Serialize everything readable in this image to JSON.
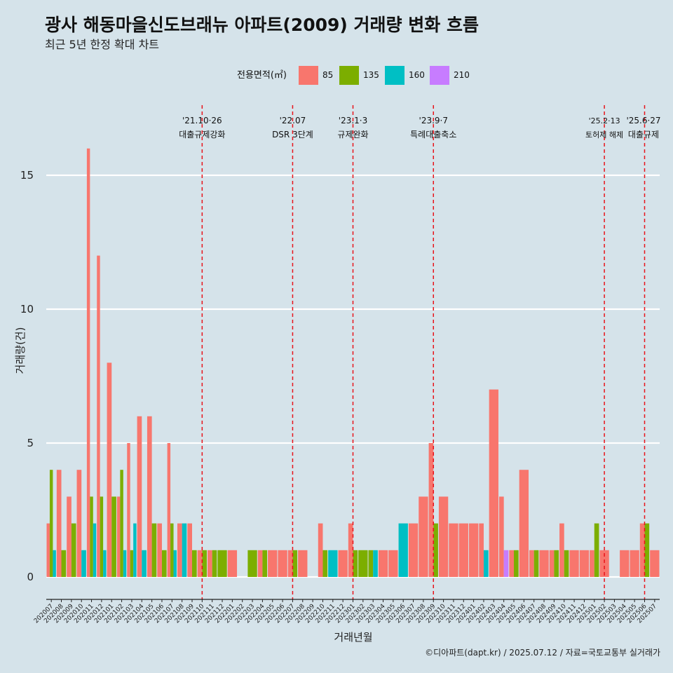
{
  "chart_data": {
    "type": "bar",
    "title": "광사 해동마을신도브래뉴 아파트(2009) 거래량 변화 흐름",
    "subtitle": "최근 5년 한정 확대 차트",
    "xlabel": "거래년월",
    "ylabel": "거래량(건)",
    "caption": "©디아파트(dapt.kr) / 2025.07.12 / 자료=국토교통부 실거래가",
    "legend_title": "전용면적(㎡)",
    "legend_position": "top",
    "ylim": [
      -0.7,
      17.5
    ],
    "yticks": [
      0,
      5,
      10,
      15
    ],
    "grid": "horizontal",
    "categories": [
      "202007",
      "202008",
      "202009",
      "202010",
      "202011",
      "202012",
      "202101",
      "202102",
      "202103",
      "202104",
      "202105",
      "202106",
      "202107",
      "202108",
      "202109",
      "202110",
      "202111",
      "202112",
      "202201",
      "202202",
      "202203",
      "202204",
      "202205",
      "202206",
      "202207",
      "202208",
      "202209",
      "202210",
      "202211",
      "202212",
      "202301",
      "202302",
      "202303",
      "202304",
      "202305",
      "202306",
      "202307",
      "202308",
      "202309",
      "202310",
      "202311",
      "202312",
      "202401",
      "202402",
      "202403",
      "202404",
      "202405",
      "202406",
      "202407",
      "202408",
      "202409",
      "202410",
      "202411",
      "202412",
      "202501",
      "202502",
      "202503",
      "202504",
      "202505",
      "202506",
      "202507"
    ],
    "series": [
      {
        "name": "85",
        "color": "#f8766d",
        "values": [
          2,
          4,
          3,
          4,
          16,
          12,
          8,
          3,
          5,
          6,
          6,
          2,
          5,
          2,
          2,
          1,
          1,
          0,
          1,
          0,
          0,
          1,
          1,
          1,
          1,
          1,
          0,
          2,
          0,
          1,
          2,
          0,
          0,
          1,
          1,
          0,
          2,
          3,
          5,
          3,
          2,
          2,
          2,
          2,
          7,
          3,
          1,
          4,
          1,
          1,
          1,
          2,
          1,
          1,
          1,
          1,
          0,
          1,
          1,
          2,
          1
        ]
      },
      {
        "name": "135",
        "color": "#7cae00",
        "values": [
          4,
          1,
          2,
          0,
          3,
          3,
          3,
          4,
          1,
          0,
          2,
          1,
          2,
          0,
          1,
          1,
          1,
          1,
          0,
          0,
          1,
          1,
          0,
          0,
          1,
          0,
          0,
          1,
          0,
          0,
          1,
          1,
          1,
          0,
          0,
          0,
          0,
          0,
          2,
          0,
          0,
          0,
          0,
          0,
          0,
          0,
          1,
          0,
          1,
          0,
          1,
          1,
          0,
          0,
          2,
          0,
          0,
          0,
          0,
          2,
          0
        ]
      },
      {
        "name": "160",
        "color": "#00bfc4",
        "values": [
          1,
          0,
          0,
          1,
          2,
          1,
          0,
          1,
          2,
          1,
          0,
          0,
          1,
          2,
          0,
          0,
          0,
          0,
          0,
          0,
          0,
          0,
          0,
          0,
          0,
          0,
          0,
          0,
          1,
          0,
          0,
          0,
          1,
          0,
          0,
          2,
          0,
          0,
          0,
          0,
          0,
          0,
          0,
          1,
          0,
          0,
          0,
          0,
          0,
          0,
          0,
          0,
          0,
          0,
          0,
          0,
          0,
          0,
          0,
          0,
          0
        ]
      },
      {
        "name": "210",
        "color": "#c77cff",
        "values": [
          0,
          0,
          0,
          0,
          0,
          0,
          0,
          0,
          0,
          0,
          0,
          0,
          0,
          0,
          0,
          0,
          0,
          0,
          0,
          0,
          0,
          0,
          0,
          0,
          0,
          0,
          0,
          0,
          0,
          0,
          0,
          0,
          0,
          0,
          0,
          0,
          0,
          0,
          0,
          0,
          0,
          0,
          0,
          0,
          0,
          1,
          0,
          0,
          0,
          0,
          0,
          0,
          0,
          0,
          0,
          0,
          0,
          0,
          0,
          0,
          0
        ]
      }
    ],
    "events": [
      {
        "x": "202110",
        "date": "'21.10·26",
        "label": "대출규제강화"
      },
      {
        "x": "202207",
        "date": "'22.07",
        "label": "DSR 3단계"
      },
      {
        "x": "202301",
        "date": "'23.1·3",
        "label": "규제완화"
      },
      {
        "x": "202309",
        "date": "'23.9·7",
        "label": "특례대출축소"
      },
      {
        "x": "202502",
        "date": "'25.2·13",
        "label": "토허제 해제"
      },
      {
        "x": "202506",
        "date": "'25.6·27",
        "label": "대출규제"
      }
    ]
  }
}
